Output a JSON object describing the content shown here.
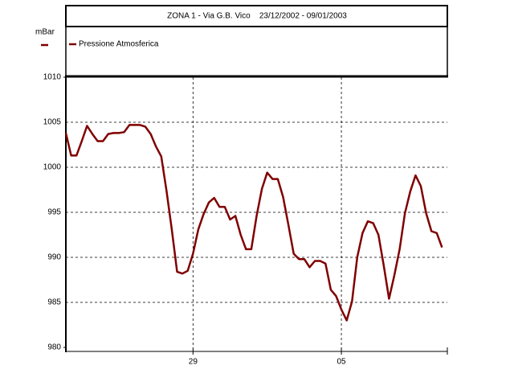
{
  "chart_data": {
    "type": "line",
    "title": "ZONA 1 - Via G.B. Vico    23/12/2002 - 09/01/2003",
    "y_label": "mBar",
    "x": [
      0,
      0.25,
      0.5,
      0.75,
      1,
      1.25,
      1.5,
      1.75,
      2,
      2.25,
      2.5,
      2.75,
      3,
      3.25,
      3.5,
      3.75,
      4,
      4.25,
      4.5,
      4.75,
      5,
      5.25,
      5.5,
      5.75,
      6,
      6.25,
      6.5,
      6.75,
      7,
      7.25,
      7.5,
      7.75,
      8,
      8.25,
      8.5,
      8.75,
      9,
      9.25,
      9.5,
      9.75,
      10,
      10.25,
      10.5,
      10.75,
      11,
      11.25,
      11.5,
      11.75,
      12,
      12.25,
      12.5,
      12.75,
      13,
      13.25,
      13.5,
      13.75,
      14,
      14.25,
      14.5,
      14.75,
      15,
      15.25,
      15.5,
      15.75,
      16,
      16.25,
      16.5,
      16.75,
      17,
      17.25,
      17.5,
      17.75
    ],
    "series": [
      {
        "name": "Pressione Atmosferica",
        "color": "#800000",
        "values": [
          1003.8,
          1001.3,
          1001.3,
          1002.9,
          1004.6,
          1003.7,
          1002.9,
          1002.9,
          1003.7,
          1003.8,
          1003.8,
          1003.9,
          1004.7,
          1004.7,
          1004.7,
          1004.5,
          1003.7,
          1002.3,
          1001.2,
          997.4,
          993.1,
          988.4,
          988.2,
          988.5,
          990.4,
          993.1,
          994.8,
          996.1,
          996.6,
          995.6,
          995.6,
          994.2,
          994.6,
          992.5,
          990.9,
          990.9,
          994.6,
          997.6,
          999.4,
          998.7,
          998.7,
          996.7,
          993.6,
          990.4,
          989.8,
          989.8,
          988.9,
          989.6,
          989.6,
          989.3,
          986.4,
          985.7,
          984.2,
          983.0,
          985.1,
          990.0,
          992.7,
          994.0,
          993.8,
          992.5,
          989.1,
          985.4,
          988.0,
          990.9,
          994.9,
          997.3,
          999.1,
          997.9,
          994.9,
          992.9,
          992.7,
          991.1
        ]
      }
    ],
    "xlim": [
      0,
      18
    ],
    "xticks": [
      {
        "value": 6,
        "label": "29"
      },
      {
        "value": 13,
        "label": "05"
      }
    ],
    "ylim": [
      980,
      1010
    ],
    "yticks": [
      980,
      985,
      990,
      995,
      1000,
      1005,
      1010
    ],
    "grid": true
  }
}
